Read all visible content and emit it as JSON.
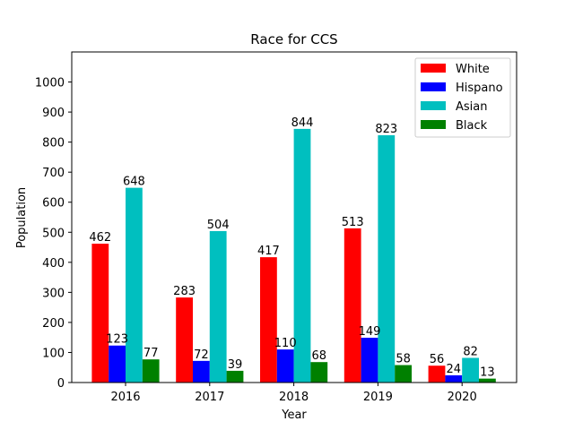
{
  "chart_data": {
    "type": "bar",
    "title": "Race for CCS",
    "xlabel": "Year",
    "ylabel": "Population",
    "categories": [
      "2016",
      "2017",
      "2018",
      "2019",
      "2020"
    ],
    "ylim": [
      0,
      1100
    ],
    "yticks": [
      0,
      100,
      200,
      300,
      400,
      500,
      600,
      700,
      800,
      900,
      1000
    ],
    "grid": false,
    "legend_position": "top-right",
    "series": [
      {
        "name": "White",
        "color": "#ff0000",
        "values": [
          462,
          283,
          417,
          513,
          56
        ]
      },
      {
        "name": "Hispano",
        "color": "#0000ff",
        "values": [
          123,
          72,
          110,
          149,
          24
        ]
      },
      {
        "name": "Asian",
        "color": "#00bfbf",
        "values": [
          648,
          504,
          844,
          823,
          82
        ]
      },
      {
        "name": "Black",
        "color": "#008000",
        "values": [
          77,
          39,
          68,
          58,
          13
        ]
      }
    ]
  }
}
